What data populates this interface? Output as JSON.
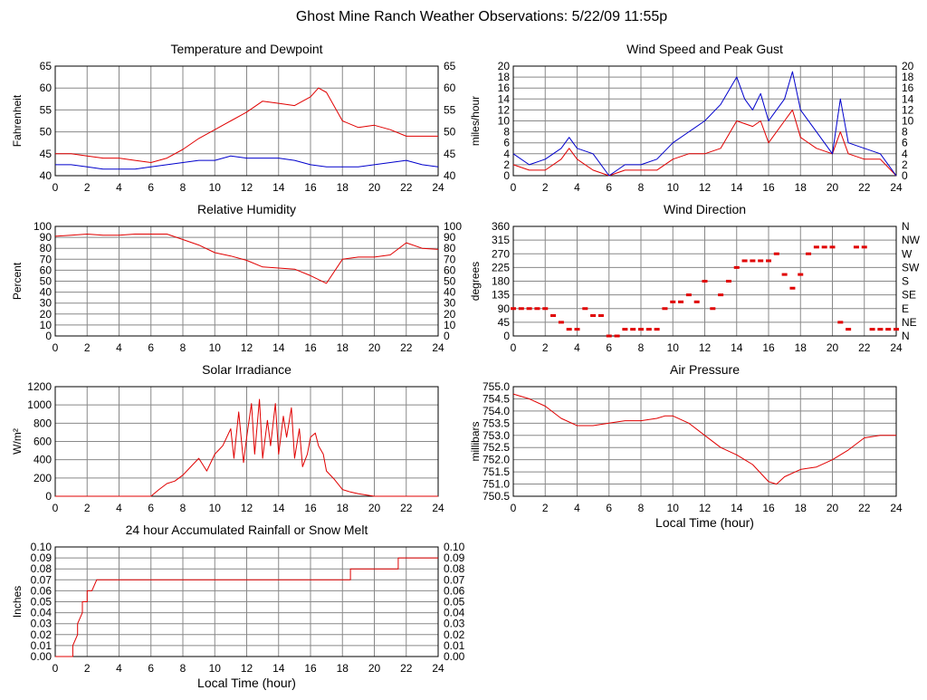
{
  "title": "Ghost Mine Ranch Weather Observations: 5/22/09 11:55p",
  "colors": {
    "primary": "#e00000",
    "secondary": "#0000cc",
    "grid": "#888888",
    "frame": "#000000"
  },
  "x_axis": {
    "ticks": [
      "0",
      "2",
      "4",
      "6",
      "8",
      "10",
      "12",
      "14",
      "16",
      "18",
      "20",
      "22",
      "24"
    ],
    "xlabel": "Local Time (hour)"
  },
  "chart_data": [
    {
      "id": "temp",
      "type": "line",
      "title": "Temperature and Dewpoint",
      "ylabel": "Fahrenheit",
      "xlim": [
        0,
        24
      ],
      "ylim": [
        40,
        65
      ],
      "yticks": [
        "40",
        "45",
        "50",
        "55",
        "60",
        "65"
      ],
      "yticks_right": [
        "40",
        "45",
        "50",
        "55",
        "60",
        "65"
      ],
      "grid": true,
      "series": [
        {
          "color": "#e00000",
          "x": [
            0,
            1,
            2,
            3,
            4,
            5,
            6,
            7,
            8,
            9,
            10,
            11,
            12,
            13,
            14,
            15,
            16,
            16.5,
            17,
            18,
            19,
            20,
            21,
            22,
            23,
            24
          ],
          "y": [
            45,
            45,
            44.5,
            44,
            44,
            43.5,
            43,
            44,
            46,
            48.5,
            50.5,
            52.5,
            54.5,
            57,
            56.5,
            56,
            58,
            60,
            59,
            52.5,
            51,
            51.5,
            50.5,
            49,
            49,
            49
          ]
        },
        {
          "color": "#0000cc",
          "x": [
            0,
            1,
            2,
            3,
            4,
            5,
            6,
            7,
            8,
            9,
            10,
            11,
            12,
            13,
            14,
            15,
            16,
            17,
            18,
            19,
            20,
            21,
            22,
            23,
            24
          ],
          "y": [
            42.5,
            42.5,
            42,
            41.5,
            41.5,
            41.5,
            42,
            42.5,
            43,
            43.5,
            43.5,
            44.5,
            44,
            44,
            44,
            43.5,
            42.5,
            42,
            42,
            42,
            42.5,
            43,
            43.5,
            42.5,
            42
          ]
        }
      ]
    },
    {
      "id": "wind",
      "type": "line",
      "title": "Wind Speed and Peak Gust",
      "ylabel": "miles/hour",
      "xlim": [
        0,
        24
      ],
      "ylim": [
        0,
        20
      ],
      "yticks": [
        "0",
        "2",
        "4",
        "6",
        "8",
        "10",
        "12",
        "14",
        "16",
        "18",
        "20"
      ],
      "yticks_right": [
        "0",
        "2",
        "4",
        "6",
        "8",
        "10",
        "12",
        "14",
        "16",
        "18",
        "20"
      ],
      "grid": true,
      "series": [
        {
          "color": "#e00000",
          "x": [
            0,
            1,
            2,
            3,
            3.5,
            4,
            5,
            6,
            7,
            8,
            9,
            10,
            11,
            12,
            13,
            14,
            15,
            15.5,
            16,
            17,
            17.5,
            18,
            19,
            20,
            20.5,
            21,
            22,
            23,
            24
          ],
          "y": [
            2,
            1,
            1,
            3,
            5,
            3,
            1,
            0,
            1,
            1,
            1,
            3,
            4,
            4,
            5,
            10,
            9,
            10,
            6,
            10,
            12,
            7,
            5,
            4,
            8,
            4,
            3,
            3,
            0
          ]
        },
        {
          "color": "#0000cc",
          "x": [
            0,
            1,
            2,
            3,
            3.5,
            4,
            5,
            6,
            7,
            8,
            9,
            10,
            11,
            12,
            13,
            14,
            14.5,
            15,
            15.5,
            16,
            17,
            17.5,
            18,
            19,
            20,
            20.5,
            21,
            22,
            23,
            24
          ],
          "y": [
            4,
            2,
            3,
            5,
            7,
            5,
            4,
            0,
            2,
            2,
            3,
            6,
            8,
            10,
            13,
            18,
            14,
            12,
            15,
            10,
            14,
            19,
            12,
            8,
            4,
            14,
            6,
            5,
            4,
            0
          ]
        }
      ]
    },
    {
      "id": "rh",
      "type": "line",
      "title": "Relative Humidity",
      "ylabel": "Percent",
      "xlim": [
        0,
        24
      ],
      "ylim": [
        0,
        100
      ],
      "yticks": [
        "0",
        "10",
        "20",
        "30",
        "40",
        "50",
        "60",
        "70",
        "80",
        "90",
        "100"
      ],
      "yticks_right": [
        "0",
        "10",
        "20",
        "30",
        "40",
        "50",
        "60",
        "70",
        "80",
        "90",
        "100"
      ],
      "grid": true,
      "series": [
        {
          "color": "#e00000",
          "x": [
            0,
            1,
            2,
            3,
            4,
            5,
            6,
            7,
            8,
            9,
            10,
            11,
            12,
            13,
            14,
            15,
            16,
            17,
            18,
            19,
            20,
            21,
            22,
            23,
            24
          ],
          "y": [
            91,
            92,
            93,
            92,
            92,
            93,
            93,
            93,
            88,
            83,
            76,
            73,
            69,
            63,
            62,
            61,
            55,
            48,
            70,
            72,
            72,
            74,
            85,
            80,
            79
          ]
        }
      ]
    },
    {
      "id": "winddir",
      "type": "scatter",
      "title": "Wind Direction",
      "ylabel": "degrees",
      "xlim": [
        0,
        24
      ],
      "ylim": [
        0,
        360
      ],
      "yticks": [
        "0",
        "45",
        "90",
        "135",
        "180",
        "225",
        "270",
        "315",
        "360"
      ],
      "yticks_right": [
        "N",
        "NE",
        "E",
        "SE",
        "S",
        "SW",
        "W",
        "NW",
        "N"
      ],
      "grid": true,
      "series": [
        {
          "color": "#e00000",
          "x": [
            0,
            0.5,
            1,
            1.5,
            2,
            2.5,
            3,
            3.5,
            4,
            4.5,
            5,
            5.5,
            6,
            6.5,
            7,
            7.5,
            8,
            8.5,
            9,
            9.5,
            10,
            10.5,
            11,
            11.5,
            12,
            12.5,
            13,
            13.5,
            14,
            14.5,
            15,
            15.5,
            16,
            16.5,
            17,
            17.5,
            18,
            18.5,
            19,
            19.5,
            20,
            20.5,
            21,
            21.5,
            22,
            22.5,
            23,
            23.5,
            24
          ],
          "y": [
            90,
            90,
            90,
            90,
            90,
            67,
            45,
            22,
            22,
            90,
            67,
            67,
            0,
            0,
            22,
            22,
            22,
            22,
            22,
            90,
            112,
            112,
            135,
            112,
            180,
            90,
            135,
            180,
            225,
            247,
            247,
            247,
            247,
            270,
            202,
            157,
            202,
            270,
            292,
            292,
            292,
            45,
            22,
            292,
            292,
            22,
            22,
            22,
            22
          ]
        }
      ]
    },
    {
      "id": "solar",
      "type": "line",
      "title": "Solar Irradiance",
      "ylabel": "W/m²",
      "xlim": [
        0,
        24
      ],
      "ylim": [
        0,
        1300
      ],
      "yticks": [
        "0",
        "200",
        "400",
        "600",
        "800",
        "1000",
        "1200"
      ],
      "grid": true,
      "series": [
        {
          "color": "#e00000",
          "x": [
            0,
            2,
            4,
            5,
            6,
            6.5,
            7,
            7.5,
            8,
            8.5,
            9,
            9.5,
            10,
            10.5,
            11,
            11.2,
            11.5,
            11.8,
            12,
            12.3,
            12.5,
            12.8,
            13,
            13.3,
            13.5,
            13.8,
            14,
            14.3,
            14.5,
            14.8,
            15,
            15.3,
            15.5,
            15.8,
            16,
            16.3,
            16.5,
            16.8,
            17,
            17.5,
            18,
            18.5,
            19,
            20,
            21,
            22,
            23,
            24
          ],
          "y": [
            0,
            0,
            0,
            0,
            0,
            80,
            150,
            180,
            250,
            350,
            450,
            300,
            500,
            600,
            800,
            450,
            1000,
            400,
            700,
            1100,
            500,
            1150,
            450,
            900,
            600,
            1100,
            500,
            950,
            700,
            1050,
            450,
            800,
            350,
            500,
            700,
            750,
            600,
            500,
            300,
            200,
            80,
            50,
            30,
            0,
            0,
            0,
            0,
            0
          ]
        }
      ]
    },
    {
      "id": "pressure",
      "type": "line",
      "title": "Air Pressure",
      "ylabel": "millibars",
      "xlim": [
        0,
        24
      ],
      "ylim": [
        750.5,
        755.0
      ],
      "yticks": [
        "750.5",
        "751.0",
        "751.5",
        "752.0",
        "752.5",
        "753.0",
        "753.5",
        "754.0",
        "754.5",
        "755.0"
      ],
      "grid": true,
      "series": [
        {
          "color": "#e00000",
          "x": [
            0,
            1,
            2,
            3,
            4,
            5,
            6,
            7,
            8,
            9,
            9.5,
            10,
            11,
            12,
            13,
            14,
            15,
            16,
            16.5,
            17,
            18,
            19,
            20,
            21,
            22,
            23,
            24
          ],
          "y": [
            754.7,
            754.5,
            754.2,
            753.7,
            753.4,
            753.4,
            753.5,
            753.6,
            753.6,
            753.7,
            753.8,
            753.8,
            753.5,
            753.0,
            752.5,
            752.2,
            751.8,
            751.1,
            751.0,
            751.3,
            751.6,
            751.7,
            752.0,
            752.4,
            752.9,
            753.0,
            753.0
          ]
        }
      ]
    },
    {
      "id": "rain",
      "type": "line",
      "title": "24 hour Accumulated Rainfall or Snow Melt",
      "ylabel": "Inches",
      "xlim": [
        0,
        24
      ],
      "ylim": [
        0,
        0.1
      ],
      "yticks": [
        "0.00",
        "0.01",
        "0.02",
        "0.03",
        "0.04",
        "0.05",
        "0.06",
        "0.07",
        "0.08",
        "0.09",
        "0.10"
      ],
      "yticks_right": [
        "0.00",
        "0.01",
        "0.02",
        "0.03",
        "0.04",
        "0.05",
        "0.06",
        "0.07",
        "0.08",
        "0.09",
        "0.10"
      ],
      "grid": true,
      "series": [
        {
          "color": "#e00000",
          "x": [
            0,
            1.1,
            1.1,
            1.4,
            1.4,
            1.7,
            1.7,
            2.0,
            2.0,
            2.3,
            2.3,
            2.6,
            2.6,
            18.5,
            18.5,
            21.5,
            21.5,
            24
          ],
          "y": [
            0,
            0,
            0.01,
            0.02,
            0.03,
            0.04,
            0.05,
            0.05,
            0.06,
            0.06,
            0.06,
            0.07,
            0.07,
            0.07,
            0.08,
            0.08,
            0.09,
            0.09
          ]
        }
      ]
    }
  ]
}
